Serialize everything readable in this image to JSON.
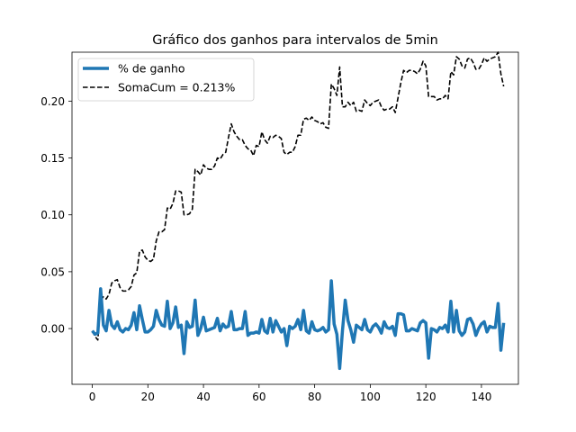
{
  "chart_data": {
    "type": "line",
    "title": "Gráfico dos ganhos para intervalos de 5min",
    "xlabel": "",
    "ylabel": "",
    "xlim": [
      -7.3,
      153.3
    ],
    "ylim": [
      -0.049,
      0.243
    ],
    "x_ticks": [
      0,
      20,
      40,
      60,
      80,
      100,
      120,
      140
    ],
    "y_ticks": [
      0.0,
      0.05,
      0.1,
      0.15,
      0.2
    ],
    "x_tick_labels": [
      "0",
      "20",
      "40",
      "60",
      "80",
      "100",
      "120",
      "140"
    ],
    "y_tick_labels": [
      "0.00",
      "0.05",
      "0.10",
      "0.15",
      "0.20"
    ],
    "grid": false,
    "legend_position": "upper-left",
    "series": [
      {
        "name": "% de ganho",
        "style": "solid",
        "color": "#1f77b4",
        "y": [
          -0.002,
          -0.005,
          -0.004,
          0.035,
          0.003,
          -0.002,
          0.016,
          0.003,
          0.0,
          0.006,
          -0.001,
          -0.003,
          0.0,
          -0.001,
          0.003,
          0.014,
          -0.001,
          0.02,
          0.008,
          -0.003,
          -0.003,
          -0.001,
          0.002,
          0.016,
          0.008,
          0.003,
          0.002,
          0.024,
          0.0,
          0.005,
          0.019,
          0.001,
          0.003,
          -0.022,
          0.006,
          0.001,
          0.002,
          0.025,
          -0.006,
          0.0,
          0.01,
          -0.002,
          -0.001,
          0.0,
          0.001,
          0.009,
          -0.002,
          0.004,
          0.001,
          0.002,
          0.015,
          -0.001,
          -0.001,
          0.0,
          0.0,
          0.015,
          -0.006,
          -0.004,
          -0.004,
          -0.003,
          -0.004,
          0.008,
          -0.002,
          -0.004,
          0.009,
          -0.003,
          0.007,
          0.002,
          -0.003,
          0.0,
          -0.015,
          0.002,
          0.0,
          0.002,
          0.008,
          -0.001,
          0.016,
          -0.002,
          -0.004,
          0.006,
          -0.001,
          -0.002,
          -0.001,
          0.001,
          -0.003,
          -0.001,
          0.042,
          0.004,
          -0.005,
          -0.035,
          -0.002,
          0.025,
          0.007,
          -0.001,
          -0.012,
          0.003,
          0.001,
          -0.001,
          0.008,
          -0.001,
          -0.003,
          0.002,
          0.004,
          0.001,
          -0.004,
          0.006,
          0.001,
          0.0,
          0.002,
          -0.006,
          0.013,
          0.013,
          0.012,
          -0.002,
          -0.002,
          0.0,
          -0.001,
          -0.002,
          0.005,
          0.007,
          0.005,
          -0.026,
          0.0,
          -0.001,
          -0.003,
          0.001,
          0.0,
          0.003,
          -0.003,
          0.024,
          -0.003,
          0.016,
          -0.002,
          -0.006,
          -0.003,
          0.008,
          0.009,
          0.004,
          -0.006,
          0.0,
          0.004,
          0.006,
          -0.003,
          0.002,
          0.001,
          0.001,
          0.022,
          -0.019,
          0.005
        ]
      },
      {
        "name": "SomaCum = 0.213%",
        "style": "dashed",
        "color": "#000000",
        "y": [
          -0.002,
          -0.007,
          -0.01,
          0.025,
          0.028,
          0.026,
          0.03,
          0.04,
          0.042,
          0.043,
          0.036,
          0.033,
          0.033,
          0.034,
          0.037,
          0.047,
          0.049,
          0.068,
          0.069,
          0.063,
          0.06,
          0.059,
          0.061,
          0.077,
          0.085,
          0.085,
          0.087,
          0.106,
          0.105,
          0.11,
          0.121,
          0.121,
          0.12,
          0.1,
          0.1,
          0.101,
          0.105,
          0.14,
          0.138,
          0.135,
          0.144,
          0.141,
          0.14,
          0.14,
          0.143,
          0.15,
          0.149,
          0.153,
          0.155,
          0.168,
          0.18,
          0.173,
          0.169,
          0.166,
          0.166,
          0.161,
          0.158,
          0.157,
          0.152,
          0.161,
          0.16,
          0.173,
          0.166,
          0.163,
          0.169,
          0.168,
          0.17,
          0.169,
          0.167,
          0.155,
          0.153,
          0.155,
          0.155,
          0.16,
          0.17,
          0.17,
          0.184,
          0.185,
          0.183,
          0.186,
          0.183,
          0.182,
          0.18,
          0.181,
          0.177,
          0.176,
          0.215,
          0.211,
          0.205,
          0.23,
          0.195,
          0.195,
          0.199,
          0.196,
          0.199,
          0.191,
          0.192,
          0.191,
          0.201,
          0.198,
          0.196,
          0.199,
          0.2,
          0.201,
          0.195,
          0.192,
          0.193,
          0.193,
          0.195,
          0.19,
          0.203,
          0.216,
          0.227,
          0.225,
          0.227,
          0.227,
          0.226,
          0.224,
          0.228,
          0.235,
          0.231,
          0.204,
          0.204,
          0.204,
          0.201,
          0.202,
          0.202,
          0.205,
          0.202,
          0.226,
          0.223,
          0.239,
          0.237,
          0.231,
          0.229,
          0.237,
          0.238,
          0.234,
          0.228,
          0.228,
          0.232,
          0.238,
          0.235,
          0.237,
          0.238,
          0.239,
          0.243,
          0.224,
          0.213
        ]
      }
    ]
  }
}
